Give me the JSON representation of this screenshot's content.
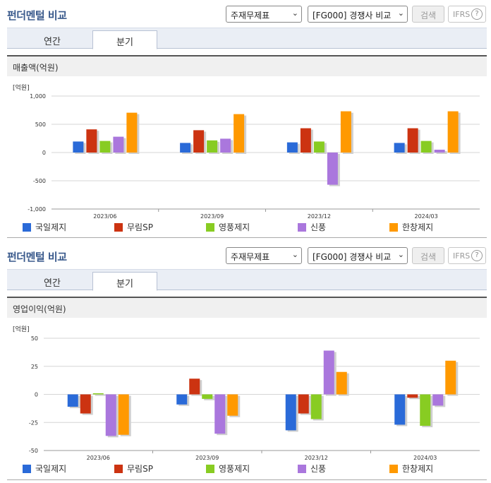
{
  "header": {
    "title": "펀더멘털 비교",
    "select1": "주재무제표",
    "select2": "[FG000] 경쟁사 비교",
    "search_label": "검색",
    "ifrs_label": "IFRS",
    "help_glyph": "?"
  },
  "tabs": [
    "연간",
    "분기"
  ],
  "active_tab": "분기",
  "legend": [
    {
      "name": "국일제지",
      "color": "#2a6ad8"
    },
    {
      "name": "무림SP",
      "color": "#cc3311"
    },
    {
      "name": "영풍제지",
      "color": "#88cc22"
    },
    {
      "name": "신풍",
      "color": "#aa77dd"
    },
    {
      "name": "한창제지",
      "color": "#ff9900"
    }
  ],
  "chart_data": [
    {
      "type": "bar",
      "metric_title": "매출액(억원)",
      "unit": "[억원]",
      "categories": [
        "2023/06",
        "2023/09",
        "2023/12",
        "2024/03"
      ],
      "ylim": [
        -1000,
        1000
      ],
      "yticks": [
        1000,
        500,
        0,
        -500,
        -1000
      ],
      "ytick_labels": [
        "1,000",
        "500",
        "0",
        "-500",
        "-1,000"
      ],
      "series": [
        {
          "name": "국일제지",
          "values": [
            195,
            170,
            180,
            170
          ]
        },
        {
          "name": "무림SP",
          "values": [
            410,
            395,
            430,
            430
          ]
        },
        {
          "name": "영풍제지",
          "values": [
            205,
            215,
            195,
            205
          ]
        },
        {
          "name": "신풍",
          "values": [
            280,
            245,
            -570,
            50
          ]
        },
        {
          "name": "한창제지",
          "values": [
            705,
            680,
            730,
            730
          ]
        }
      ]
    },
    {
      "type": "bar",
      "metric_title": "영업이익(억원)",
      "unit": "[억원]",
      "categories": [
        "2023/06",
        "2023/09",
        "2023/12",
        "2024/03"
      ],
      "ylim": [
        -50,
        50
      ],
      "yticks": [
        50,
        25,
        0,
        -25,
        -50
      ],
      "ytick_labels": [
        "50",
        "25",
        "0",
        "-25",
        "-50"
      ],
      "series": [
        {
          "name": "국일제지",
          "values": [
            -11,
            -9,
            -32,
            -27
          ]
        },
        {
          "name": "무림SP",
          "values": [
            -17,
            14,
            -17,
            -3
          ]
        },
        {
          "name": "영풍제지",
          "values": [
            1,
            -4,
            -22,
            -28
          ]
        },
        {
          "name": "신풍",
          "values": [
            -37,
            -35,
            39,
            -10
          ]
        },
        {
          "name": "한창제지",
          "values": [
            -36,
            -19,
            20,
            30
          ]
        }
      ]
    }
  ]
}
